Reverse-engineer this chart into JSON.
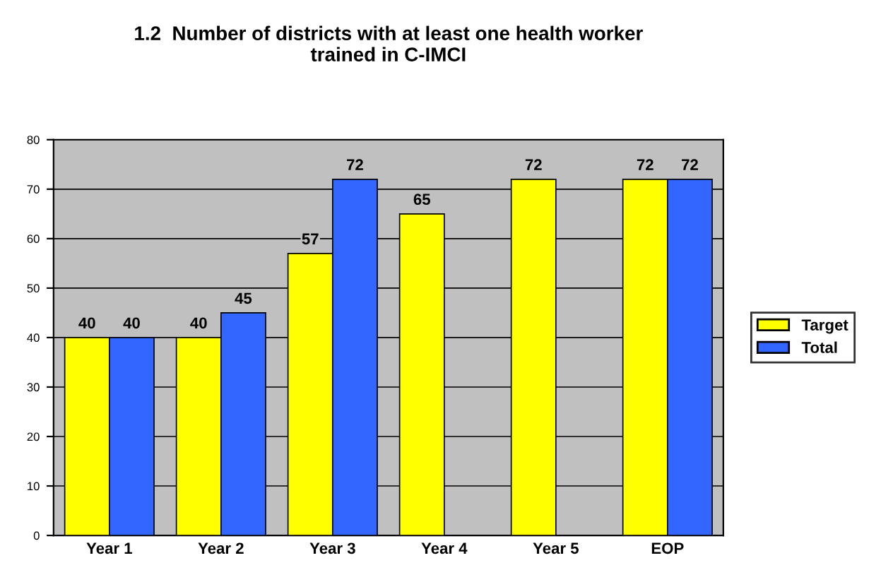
{
  "chart_data": {
    "type": "bar",
    "title": "1.2  Number of districts with at least one health worker\ntrained in C-IMCI",
    "categories": [
      "Year 1",
      "Year 2",
      "Year 3",
      "Year 4",
      "Year 5",
      "EOP"
    ],
    "series": [
      {
        "name": "Target",
        "color": "#ffff00",
        "values": [
          40,
          40,
          57,
          65,
          72,
          72
        ]
      },
      {
        "name": "Total",
        "color": "#3366ff",
        "values": [
          40,
          45,
          72,
          null,
          null,
          72
        ]
      }
    ],
    "ylim": [
      0,
      80
    ],
    "yticks": [
      0,
      10,
      20,
      30,
      40,
      50,
      60,
      70,
      80
    ],
    "grid": "y",
    "legend": "right",
    "data_labels": true
  }
}
